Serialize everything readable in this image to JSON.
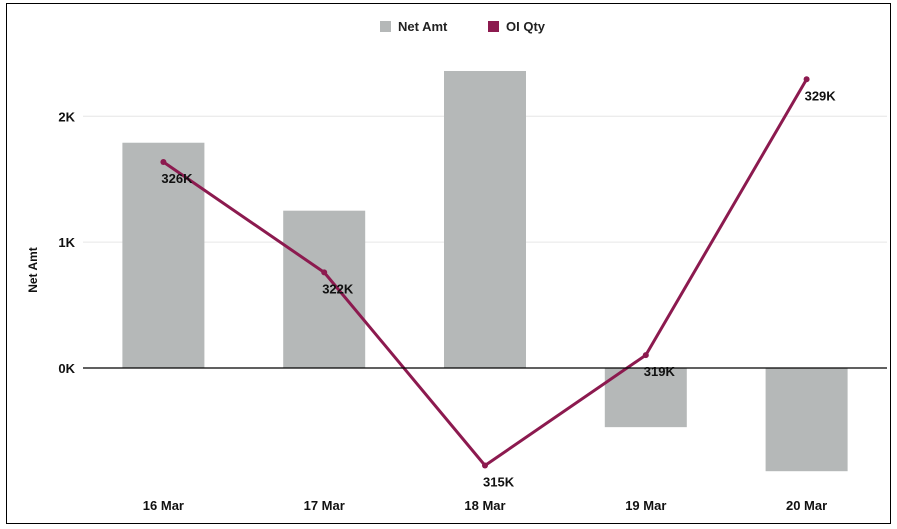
{
  "chart_data": {
    "type": "bar+line",
    "categories": [
      "16 Mar",
      "17 Mar",
      "18 Mar",
      "19 Mar",
      "20 Mar"
    ],
    "series": [
      {
        "name": "Net Amt",
        "type": "bar",
        "axis": "left",
        "values": [
          1790,
          1250,
          2360,
          -470,
          -820
        ]
      },
      {
        "name": "OI Qty",
        "type": "line",
        "axis": "right",
        "values": [
          326000,
          322000,
          315000,
          319000,
          329000
        ],
        "labels": [
          "326K",
          "322K",
          "315K",
          "319K",
          "329K"
        ]
      }
    ],
    "ylabel": "Net Amt",
    "y_ticks": [
      {
        "value": 0,
        "label": "0K"
      },
      {
        "value": 1000,
        "label": "1K"
      },
      {
        "value": 2000,
        "label": "2K"
      }
    ],
    "ylim": [
      -900,
      2700
    ],
    "y2lim": [
      314500,
      330000
    ],
    "legend": {
      "position": "top-center"
    },
    "grid": true,
    "colors": {
      "bar": "#b5b8b8",
      "line": "#8c1a4f",
      "grid": "#e6e6e6",
      "zero_line": "#000000"
    }
  }
}
